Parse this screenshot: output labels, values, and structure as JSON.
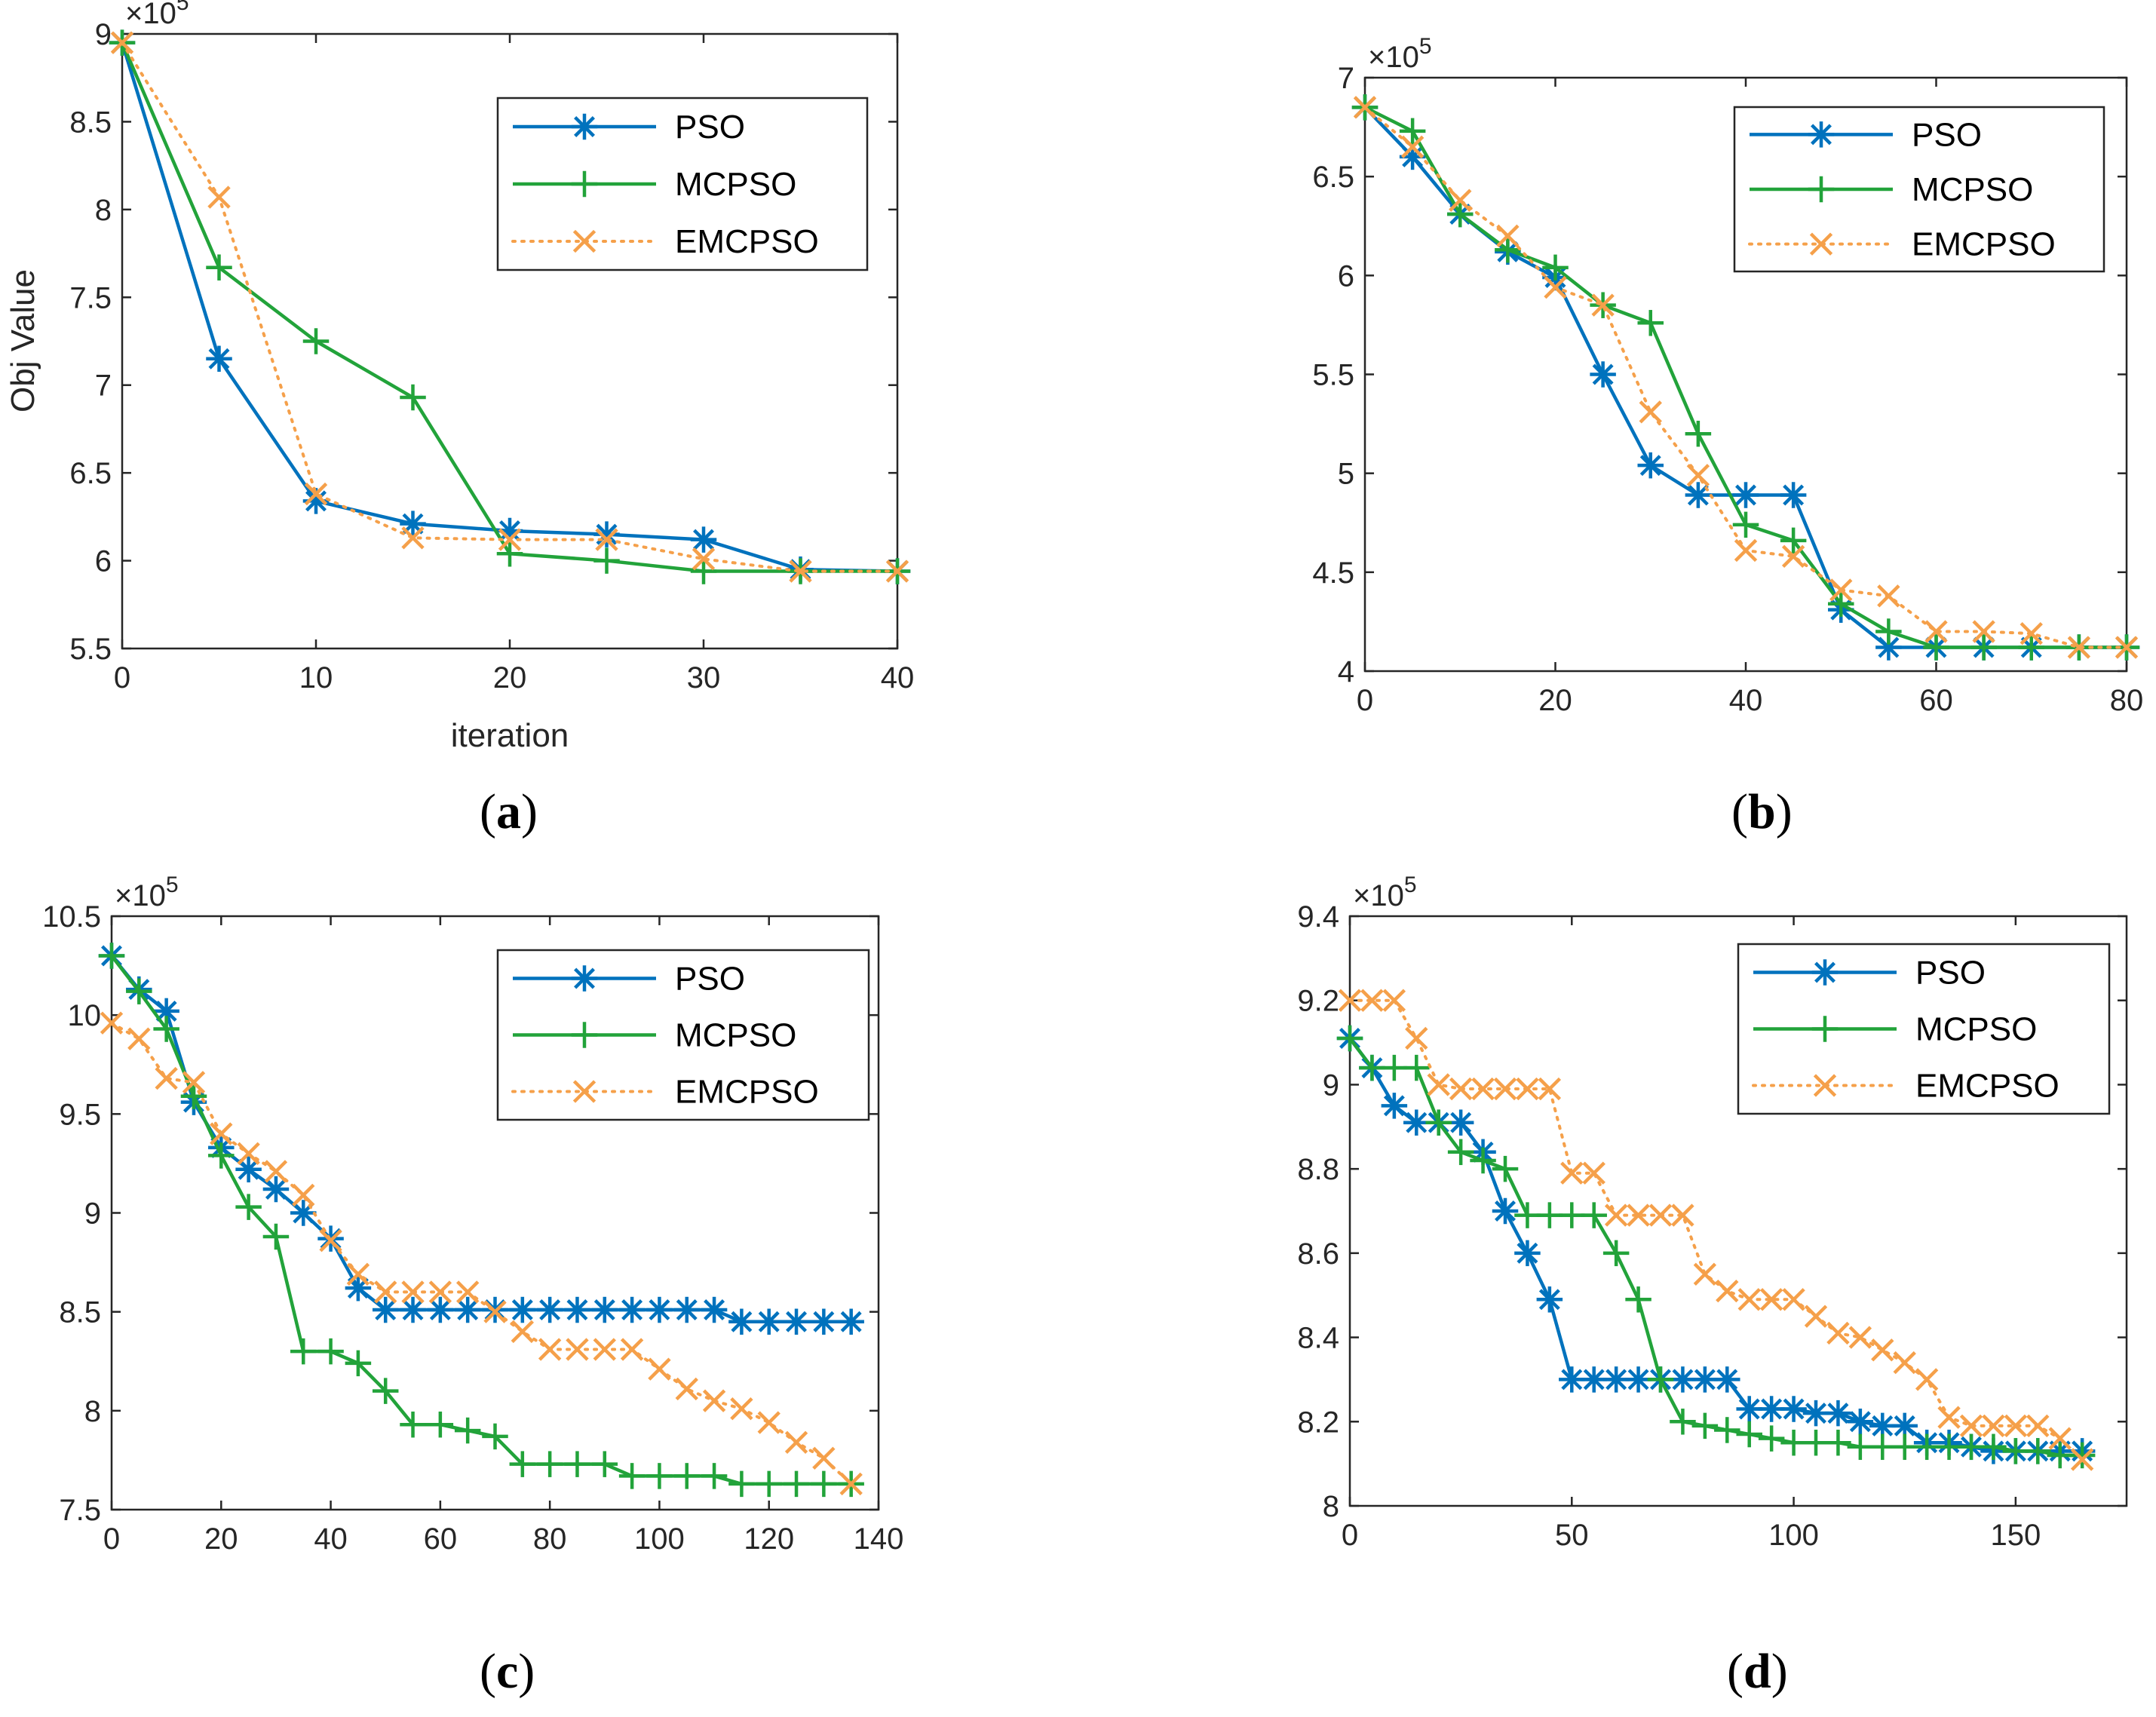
{
  "figure": {
    "colors": {
      "PSO": "#0072BD",
      "MCPSO": "#22A33A",
      "EMCPSO": "#F5A04A"
    }
  },
  "chart_data": [
    {
      "id": "a",
      "type": "line",
      "caption_letter": "a",
      "xlabel": "iteration",
      "ylabel": "Obj Value",
      "exponent": "×10",
      "exponent_power": "5",
      "xlim": [
        0,
        40
      ],
      "ylim": [
        5.5,
        9
      ],
      "xticks": [
        0,
        10,
        20,
        30,
        40
      ],
      "yticks": [
        5.5,
        6,
        6.5,
        7,
        7.5,
        8,
        8.5,
        9
      ],
      "xtick_labels": [
        "0",
        "10",
        "20",
        "30",
        "40"
      ],
      "ytick_labels": [
        "5.5",
        "6",
        "6.5",
        "7",
        "7.5",
        "8",
        "8.5",
        "9"
      ],
      "legend": [
        "PSO",
        "MCPSO",
        "EMCPSO"
      ],
      "series": [
        {
          "name": "PSO",
          "marker": "star",
          "x": [
            0,
            5,
            10,
            15,
            20,
            25,
            30,
            35,
            40
          ],
          "y": [
            8.95,
            7.15,
            6.34,
            6.21,
            6.17,
            6.15,
            6.12,
            5.95,
            5.94
          ]
        },
        {
          "name": "MCPSO",
          "marker": "plus",
          "x": [
            0,
            5,
            10,
            15,
            20,
            25,
            30,
            35,
            40
          ],
          "y": [
            8.95,
            7.67,
            7.25,
            6.93,
            6.04,
            6.0,
            5.94,
            5.94,
            5.94
          ]
        },
        {
          "name": "EMCPSO",
          "marker": "x",
          "x": [
            0,
            5,
            10,
            15,
            20,
            25,
            30,
            35,
            40
          ],
          "y": [
            8.95,
            8.07,
            6.38,
            6.13,
            6.12,
            6.12,
            6.01,
            5.94,
            5.94
          ]
        }
      ]
    },
    {
      "id": "b",
      "type": "line",
      "caption_letter": "b",
      "xlabel": "",
      "ylabel": "",
      "exponent": "×10",
      "exponent_power": "5",
      "xlim": [
        0,
        80
      ],
      "ylim": [
        4,
        7
      ],
      "xticks": [
        0,
        20,
        40,
        60,
        80
      ],
      "yticks": [
        4,
        4.5,
        5,
        5.5,
        6,
        6.5,
        7
      ],
      "xtick_labels": [
        "0",
        "20",
        "40",
        "60",
        "80"
      ],
      "ytick_labels": [
        "4",
        "4.5",
        "5",
        "5.5",
        "6",
        "6.5",
        "7"
      ],
      "legend": [
        "PSO",
        "MCPSO",
        "EMCPSO"
      ],
      "series": [
        {
          "name": "PSO",
          "marker": "star",
          "x": [
            0,
            5,
            10,
            15,
            20,
            25,
            30,
            35,
            40,
            45,
            50,
            55,
            60,
            65,
            70,
            75,
            80
          ],
          "y": [
            6.85,
            6.6,
            6.31,
            6.12,
            5.99,
            5.5,
            5.04,
            4.89,
            4.89,
            4.89,
            4.31,
            4.12,
            4.12,
            4.12,
            4.12,
            4.12,
            4.12
          ]
        },
        {
          "name": "MCPSO",
          "marker": "plus",
          "x": [
            0,
            5,
            10,
            15,
            20,
            25,
            30,
            35,
            40,
            45,
            50,
            55,
            60,
            65,
            70,
            75,
            80
          ],
          "y": [
            6.85,
            6.73,
            6.31,
            6.13,
            6.04,
            5.85,
            5.76,
            5.2,
            4.74,
            4.66,
            4.34,
            4.2,
            4.12,
            4.12,
            4.12,
            4.12,
            4.12
          ]
        },
        {
          "name": "EMCPSO",
          "marker": "x",
          "x": [
            0,
            5,
            10,
            15,
            20,
            25,
            30,
            35,
            40,
            45,
            50,
            55,
            60,
            65,
            70,
            75,
            80
          ],
          "y": [
            6.85,
            6.65,
            6.38,
            6.2,
            5.94,
            5.85,
            5.31,
            4.99,
            4.61,
            4.58,
            4.41,
            4.38,
            4.2,
            4.2,
            4.19,
            4.12,
            4.12
          ]
        }
      ]
    },
    {
      "id": "c",
      "type": "line",
      "caption_letter": "c",
      "xlabel": "",
      "ylabel": "",
      "exponent": "×10",
      "exponent_power": "5",
      "xlim": [
        0,
        140
      ],
      "ylim": [
        7.5,
        10.5
      ],
      "xticks": [
        0,
        20,
        40,
        60,
        80,
        100,
        120,
        140
      ],
      "yticks": [
        7.5,
        8,
        8.5,
        9,
        9.5,
        10,
        10.5
      ],
      "xtick_labels": [
        "0",
        "20",
        "40",
        "60",
        "80",
        "100",
        "120",
        "140"
      ],
      "ytick_labels": [
        "7.5",
        "8",
        "8.5",
        "9",
        "9.5",
        "10",
        "10.5"
      ],
      "legend": [
        "PSO",
        "MCPSO",
        "EMCPSO"
      ],
      "series": [
        {
          "name": "PSO",
          "marker": "star",
          "x": [
            0,
            5,
            10,
            15,
            20,
            25,
            30,
            35,
            40,
            45,
            50,
            55,
            60,
            65,
            70,
            75,
            80,
            85,
            90,
            95,
            100,
            105,
            110,
            115,
            120,
            125,
            130,
            135
          ],
          "y": [
            10.3,
            10.13,
            10.02,
            9.56,
            9.33,
            9.22,
            9.12,
            9.0,
            8.87,
            8.62,
            8.51,
            8.51,
            8.51,
            8.51,
            8.51,
            8.51,
            8.51,
            8.51,
            8.51,
            8.51,
            8.51,
            8.51,
            8.51,
            8.45,
            8.45,
            8.45,
            8.45,
            8.45
          ]
        },
        {
          "name": "MCPSO",
          "marker": "plus",
          "x": [
            0,
            5,
            10,
            15,
            20,
            25,
            30,
            35,
            40,
            45,
            50,
            55,
            60,
            65,
            70,
            75,
            80,
            85,
            90,
            95,
            100,
            105,
            110,
            115,
            120,
            125,
            130,
            135
          ],
          "y": [
            10.3,
            10.12,
            9.93,
            9.59,
            9.29,
            9.03,
            8.88,
            8.3,
            8.3,
            8.24,
            8.1,
            7.93,
            7.93,
            7.9,
            7.87,
            7.73,
            7.73,
            7.73,
            7.73,
            7.67,
            7.67,
            7.67,
            7.67,
            7.63,
            7.63,
            7.63,
            7.63,
            7.63
          ]
        },
        {
          "name": "EMCPSO",
          "marker": "x",
          "x": [
            0,
            5,
            10,
            15,
            20,
            25,
            30,
            35,
            40,
            45,
            50,
            55,
            60,
            65,
            70,
            75,
            80,
            85,
            90,
            95,
            100,
            105,
            110,
            115,
            120,
            125,
            130,
            135
          ],
          "y": [
            9.96,
            9.88,
            9.68,
            9.66,
            9.4,
            9.3,
            9.21,
            9.09,
            8.86,
            8.69,
            8.6,
            8.6,
            8.6,
            8.6,
            8.5,
            8.4,
            8.31,
            8.31,
            8.31,
            8.31,
            8.21,
            8.11,
            8.05,
            8.01,
            7.94,
            7.84,
            7.76,
            7.63
          ]
        }
      ]
    },
    {
      "id": "d",
      "type": "line",
      "caption_letter": "d",
      "xlabel": "",
      "ylabel": "",
      "exponent": "×10",
      "exponent_power": "5",
      "xlim": [
        0,
        175
      ],
      "ylim": [
        8,
        9.4
      ],
      "xticks": [
        0,
        50,
        100,
        150
      ],
      "yticks": [
        8,
        8.2,
        8.4,
        8.6,
        8.8,
        9,
        9.2,
        9.4
      ],
      "xtick_labels": [
        "0",
        "50",
        "100",
        "150"
      ],
      "ytick_labels": [
        "8",
        "8.2",
        "8.4",
        "8.6",
        "8.8",
        "9",
        "9.2",
        "9.4"
      ],
      "legend": [
        "PSO",
        "MCPSO",
        "EMCPSO"
      ],
      "series": [
        {
          "name": "PSO",
          "marker": "star",
          "x": [
            0,
            5,
            10,
            15,
            20,
            25,
            30,
            35,
            40,
            45,
            50,
            55,
            60,
            65,
            70,
            75,
            80,
            85,
            90,
            95,
            100,
            105,
            110,
            115,
            120,
            125,
            130,
            135,
            140,
            145,
            150,
            155,
            160,
            165
          ],
          "y": [
            9.11,
            9.04,
            8.95,
            8.91,
            8.91,
            8.91,
            8.84,
            8.7,
            8.6,
            8.49,
            8.3,
            8.3,
            8.3,
            8.3,
            8.3,
            8.3,
            8.3,
            8.3,
            8.23,
            8.23,
            8.23,
            8.22,
            8.22,
            8.2,
            8.19,
            8.19,
            8.15,
            8.15,
            8.14,
            8.13,
            8.13,
            8.13,
            8.13,
            8.13
          ]
        },
        {
          "name": "MCPSO",
          "marker": "plus",
          "x": [
            0,
            5,
            10,
            15,
            20,
            25,
            30,
            35,
            40,
            45,
            50,
            55,
            60,
            65,
            70,
            75,
            80,
            85,
            90,
            95,
            100,
            105,
            110,
            115,
            120,
            125,
            130,
            135,
            140,
            145,
            150,
            155,
            160,
            165
          ],
          "y": [
            9.11,
            9.04,
            9.04,
            9.04,
            8.91,
            8.84,
            8.82,
            8.8,
            8.69,
            8.69,
            8.69,
            8.69,
            8.6,
            8.49,
            8.3,
            8.2,
            8.19,
            8.18,
            8.17,
            8.16,
            8.15,
            8.15,
            8.15,
            8.14,
            8.14,
            8.14,
            8.14,
            8.14,
            8.14,
            8.14,
            8.13,
            8.13,
            8.12,
            8.12
          ]
        },
        {
          "name": "EMCPSO",
          "marker": "x",
          "x": [
            0,
            5,
            10,
            15,
            20,
            25,
            30,
            35,
            40,
            45,
            50,
            55,
            60,
            65,
            70,
            75,
            80,
            85,
            90,
            95,
            100,
            105,
            110,
            115,
            120,
            125,
            130,
            135,
            140,
            145,
            150,
            155,
            160,
            165
          ],
          "y": [
            9.2,
            9.2,
            9.2,
            9.11,
            9.0,
            8.99,
            8.99,
            8.99,
            8.99,
            8.99,
            8.79,
            8.79,
            8.69,
            8.69,
            8.69,
            8.69,
            8.55,
            8.51,
            8.49,
            8.49,
            8.49,
            8.45,
            8.41,
            8.4,
            8.37,
            8.34,
            8.3,
            8.21,
            8.19,
            8.19,
            8.19,
            8.19,
            8.16,
            8.11
          ]
        }
      ]
    }
  ]
}
